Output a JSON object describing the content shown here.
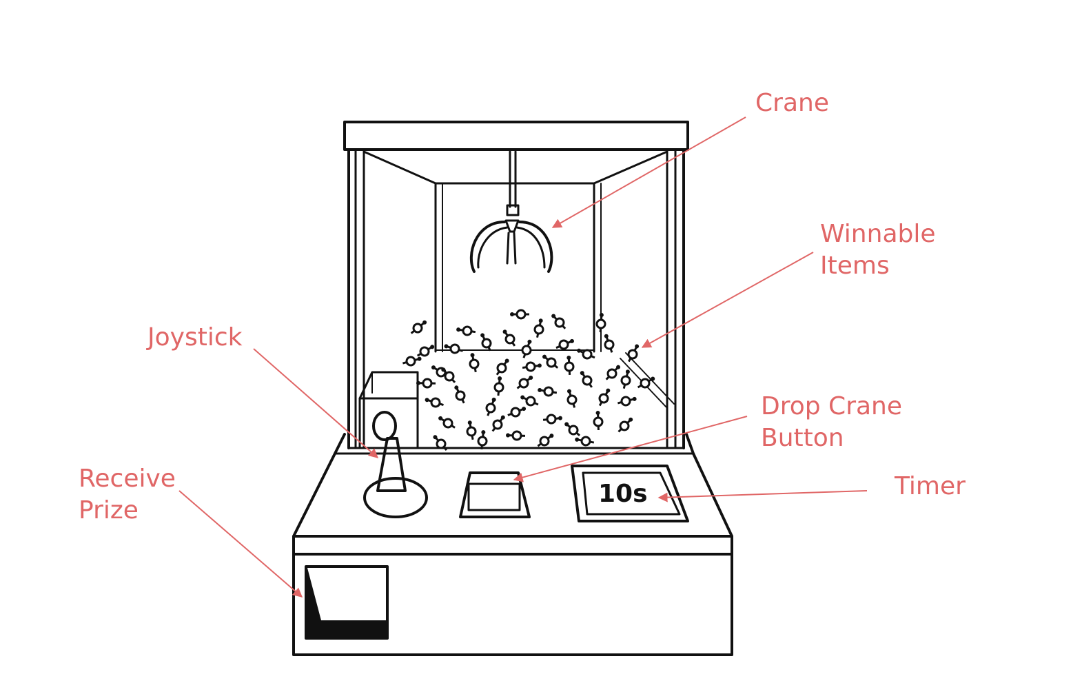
{
  "diagram": {
    "label_color": "#e06666",
    "labels": {
      "crane": "Crane",
      "winnable_items": [
        "Winnable",
        "Items"
      ],
      "joystick": "Joystick",
      "drop_crane_button": [
        "Drop Crane",
        "Button"
      ],
      "timer": "Timer",
      "receive_prize": [
        "Receive",
        "Prize"
      ]
    },
    "timer_display": "10s"
  }
}
